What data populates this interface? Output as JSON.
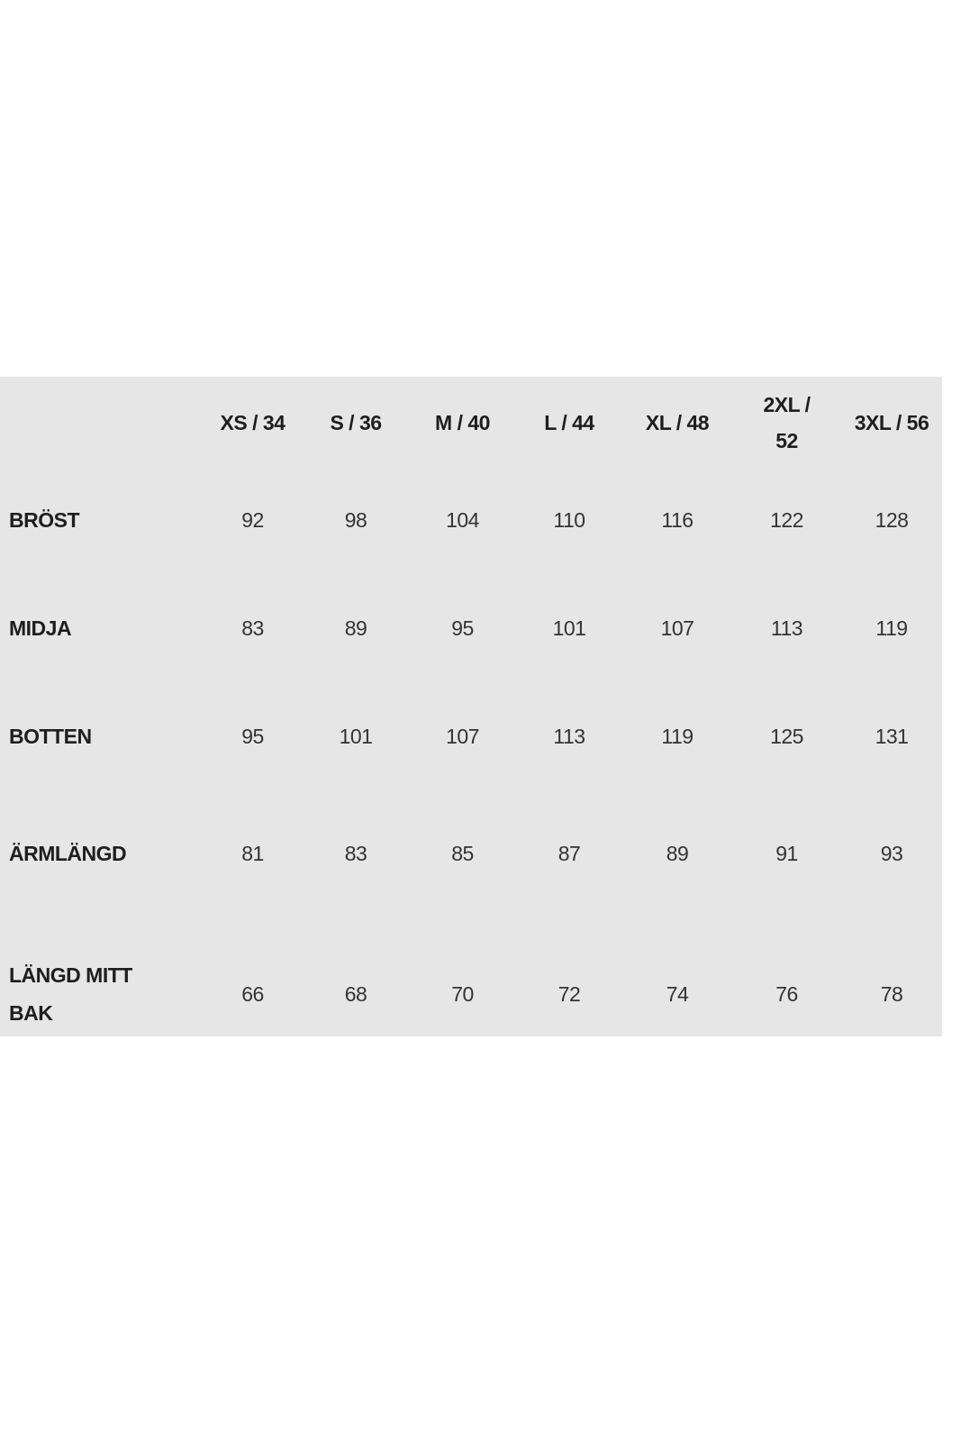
{
  "size_chart": {
    "columns": [
      "",
      "XS / 34",
      "S / 36",
      "M / 40",
      "L / 44",
      "XL / 48",
      "2XL / 52",
      "3XL / 56"
    ],
    "rows": [
      {
        "label": "BRÖST",
        "values": [
          "92",
          "98",
          "104",
          "110",
          "116",
          "122",
          "128"
        ]
      },
      {
        "label": "MIDJA",
        "values": [
          "83",
          "89",
          "95",
          "101",
          "107",
          "113",
          "119"
        ]
      },
      {
        "label": "BOTTEN",
        "values": [
          "95",
          "101",
          "107",
          "113",
          "119",
          "125",
          "131"
        ]
      },
      {
        "label": "ÄRMLÄNGD",
        "values": [
          "81",
          "83",
          "85",
          "87",
          "89",
          "91",
          "93"
        ]
      },
      {
        "label": "LÄNGD MITT BAK",
        "values": [
          "66",
          "68",
          "70",
          "72",
          "74",
          "76",
          "78"
        ]
      }
    ],
    "colors": {
      "background": "#e6e6e6",
      "text": "#1e1e1e"
    }
  }
}
